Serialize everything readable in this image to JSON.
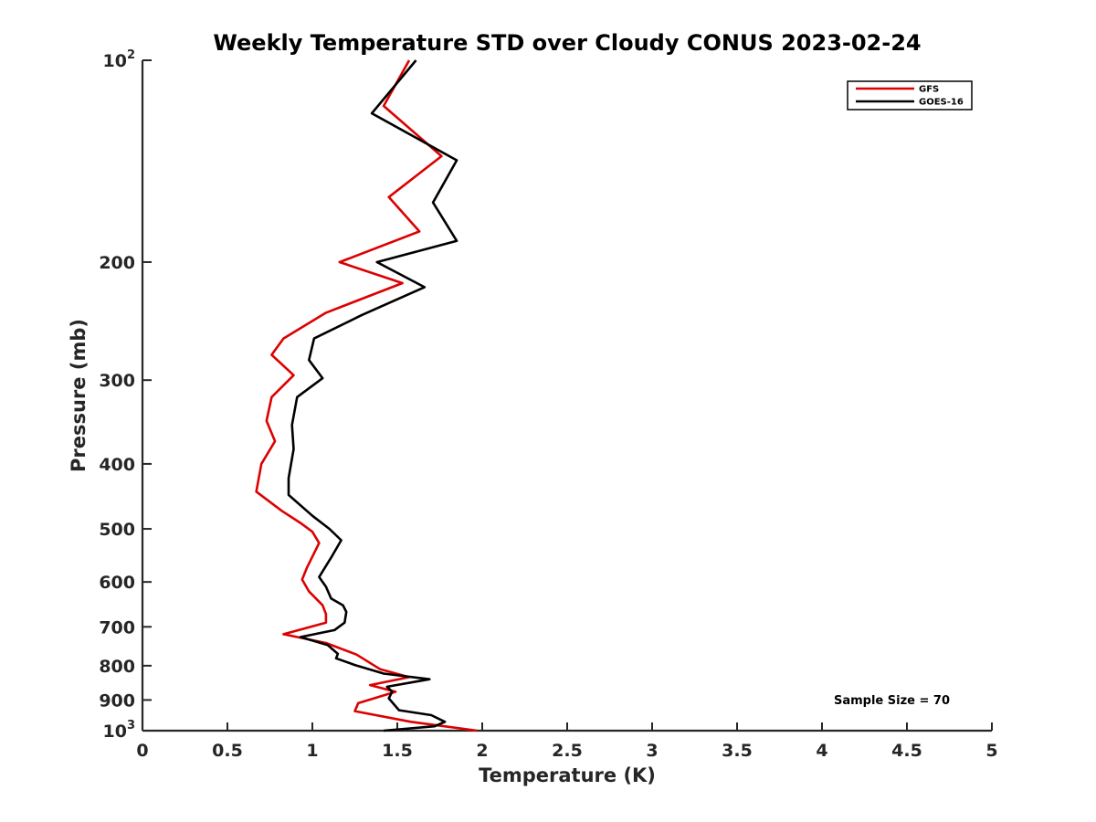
{
  "chart_data": {
    "type": "line",
    "title": "Weekly Temperature STD over Cloudy CONUS 2023-02-24",
    "xlabel": "Temperature (K)",
    "ylabel": "Pressure (mb)",
    "xlim": [
      0,
      5
    ],
    "ylim": [
      1000,
      100
    ],
    "yscale": "log",
    "y_reversed": true,
    "grid": false,
    "legend_position": "top-right",
    "x_ticks": [
      {
        "value": 0,
        "label": "0"
      },
      {
        "value": 0.5,
        "label": "0.5"
      },
      {
        "value": 1,
        "label": "1"
      },
      {
        "value": 1.5,
        "label": "1.5"
      },
      {
        "value": 2,
        "label": "2"
      },
      {
        "value": 2.5,
        "label": "2.5"
      },
      {
        "value": 3,
        "label": "3"
      },
      {
        "value": 3.5,
        "label": "3.5"
      },
      {
        "value": 4,
        "label": "4"
      },
      {
        "value": 4.5,
        "label": "4.5"
      },
      {
        "value": 5,
        "label": "5"
      }
    ],
    "y_ticks": [
      {
        "value": 100,
        "base": "10",
        "exp": "2"
      },
      {
        "value": 200,
        "label": "200"
      },
      {
        "value": 300,
        "label": "300"
      },
      {
        "value": 400,
        "label": "400"
      },
      {
        "value": 500,
        "label": "500"
      },
      {
        "value": 600,
        "label": "600"
      },
      {
        "value": 700,
        "label": "700"
      },
      {
        "value": 800,
        "label": "800"
      },
      {
        "value": 900,
        "label": "900"
      },
      {
        "value": 1000,
        "base": "10",
        "exp": "3"
      }
    ],
    "annotation": "Sample Size = 70",
    "series": [
      {
        "name": "GFS",
        "color": "#dd0000",
        "points": [
          [
            1.57,
            100
          ],
          [
            1.42,
            117
          ],
          [
            1.76,
            139
          ],
          [
            1.45,
            160
          ],
          [
            1.63,
            180
          ],
          [
            1.16,
            200
          ],
          [
            1.53,
            215
          ],
          [
            1.08,
            238
          ],
          [
            0.83,
            260
          ],
          [
            0.76,
            275
          ],
          [
            0.89,
            295
          ],
          [
            0.76,
            318
          ],
          [
            0.73,
            345
          ],
          [
            0.78,
            370
          ],
          [
            0.7,
            400
          ],
          [
            0.67,
            440
          ],
          [
            0.82,
            470
          ],
          [
            0.93,
            490
          ],
          [
            1.0,
            505
          ],
          [
            1.04,
            525
          ],
          [
            0.97,
            570
          ],
          [
            0.94,
            595
          ],
          [
            0.98,
            620
          ],
          [
            1.06,
            650
          ],
          [
            1.08,
            670
          ],
          [
            1.08,
            690
          ],
          [
            0.83,
            718
          ],
          [
            1.08,
            740
          ],
          [
            1.26,
            770
          ],
          [
            1.4,
            810
          ],
          [
            1.57,
            832
          ],
          [
            1.34,
            855
          ],
          [
            1.49,
            875
          ],
          [
            1.27,
            910
          ],
          [
            1.25,
            935
          ],
          [
            1.58,
            970
          ],
          [
            1.97,
            1000
          ]
        ]
      },
      {
        "name": "GOES-16",
        "color": "#000000",
        "points": [
          [
            1.61,
            100
          ],
          [
            1.35,
            120
          ],
          [
            1.85,
            141
          ],
          [
            1.71,
            163
          ],
          [
            1.85,
            186
          ],
          [
            1.38,
            200
          ],
          [
            1.66,
            218
          ],
          [
            1.29,
            240
          ],
          [
            1.01,
            260
          ],
          [
            0.98,
            280
          ],
          [
            1.06,
            298
          ],
          [
            0.91,
            318
          ],
          [
            0.88,
            350
          ],
          [
            0.89,
            380
          ],
          [
            0.86,
            420
          ],
          [
            0.86,
            445
          ],
          [
            1.0,
            478
          ],
          [
            1.1,
            500
          ],
          [
            1.17,
            520
          ],
          [
            1.11,
            552
          ],
          [
            1.04,
            590
          ],
          [
            1.08,
            610
          ],
          [
            1.11,
            635
          ],
          [
            1.18,
            650
          ],
          [
            1.2,
            665
          ],
          [
            1.19,
            690
          ],
          [
            1.13,
            708
          ],
          [
            0.93,
            725
          ],
          [
            1.09,
            745
          ],
          [
            1.15,
            768
          ],
          [
            1.14,
            780
          ],
          [
            1.25,
            798
          ],
          [
            1.42,
            822
          ],
          [
            1.69,
            838
          ],
          [
            1.44,
            860
          ],
          [
            1.47,
            875
          ],
          [
            1.45,
            895
          ],
          [
            1.51,
            932
          ],
          [
            1.7,
            948
          ],
          [
            1.78,
            970
          ],
          [
            1.72,
            985
          ],
          [
            1.42,
            1000
          ]
        ]
      }
    ]
  }
}
